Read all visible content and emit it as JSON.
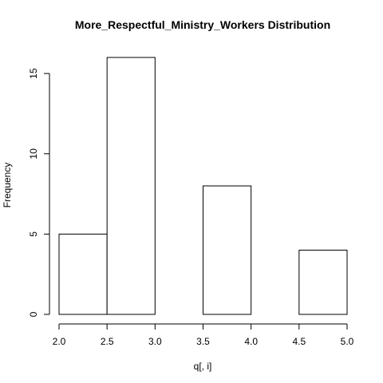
{
  "chart_data": {
    "type": "bar",
    "title": "More_Respectful_Ministry_Workers Distribution",
    "xlabel": "q[, i]",
    "ylabel": "Frequency",
    "bins": [
      {
        "start": 2.0,
        "end": 2.5,
        "count": 5
      },
      {
        "start": 2.5,
        "end": 3.0,
        "count": 16
      },
      {
        "start": 3.0,
        "end": 3.5,
        "count": 0
      },
      {
        "start": 3.5,
        "end": 4.0,
        "count": 8
      },
      {
        "start": 4.0,
        "end": 4.5,
        "count": 0
      },
      {
        "start": 4.5,
        "end": 5.0,
        "count": 4
      }
    ],
    "xlim": [
      2.0,
      5.0
    ],
    "ylim": [
      0,
      16
    ],
    "x_ticks": [
      "2.0",
      "2.5",
      "3.0",
      "3.5",
      "4.0",
      "4.5",
      "5.0"
    ],
    "y_ticks": [
      "0",
      "5",
      "10",
      "15"
    ],
    "grid": false,
    "colors": {
      "bar_fill": "#ffffff",
      "bar_stroke": "#000000"
    }
  }
}
